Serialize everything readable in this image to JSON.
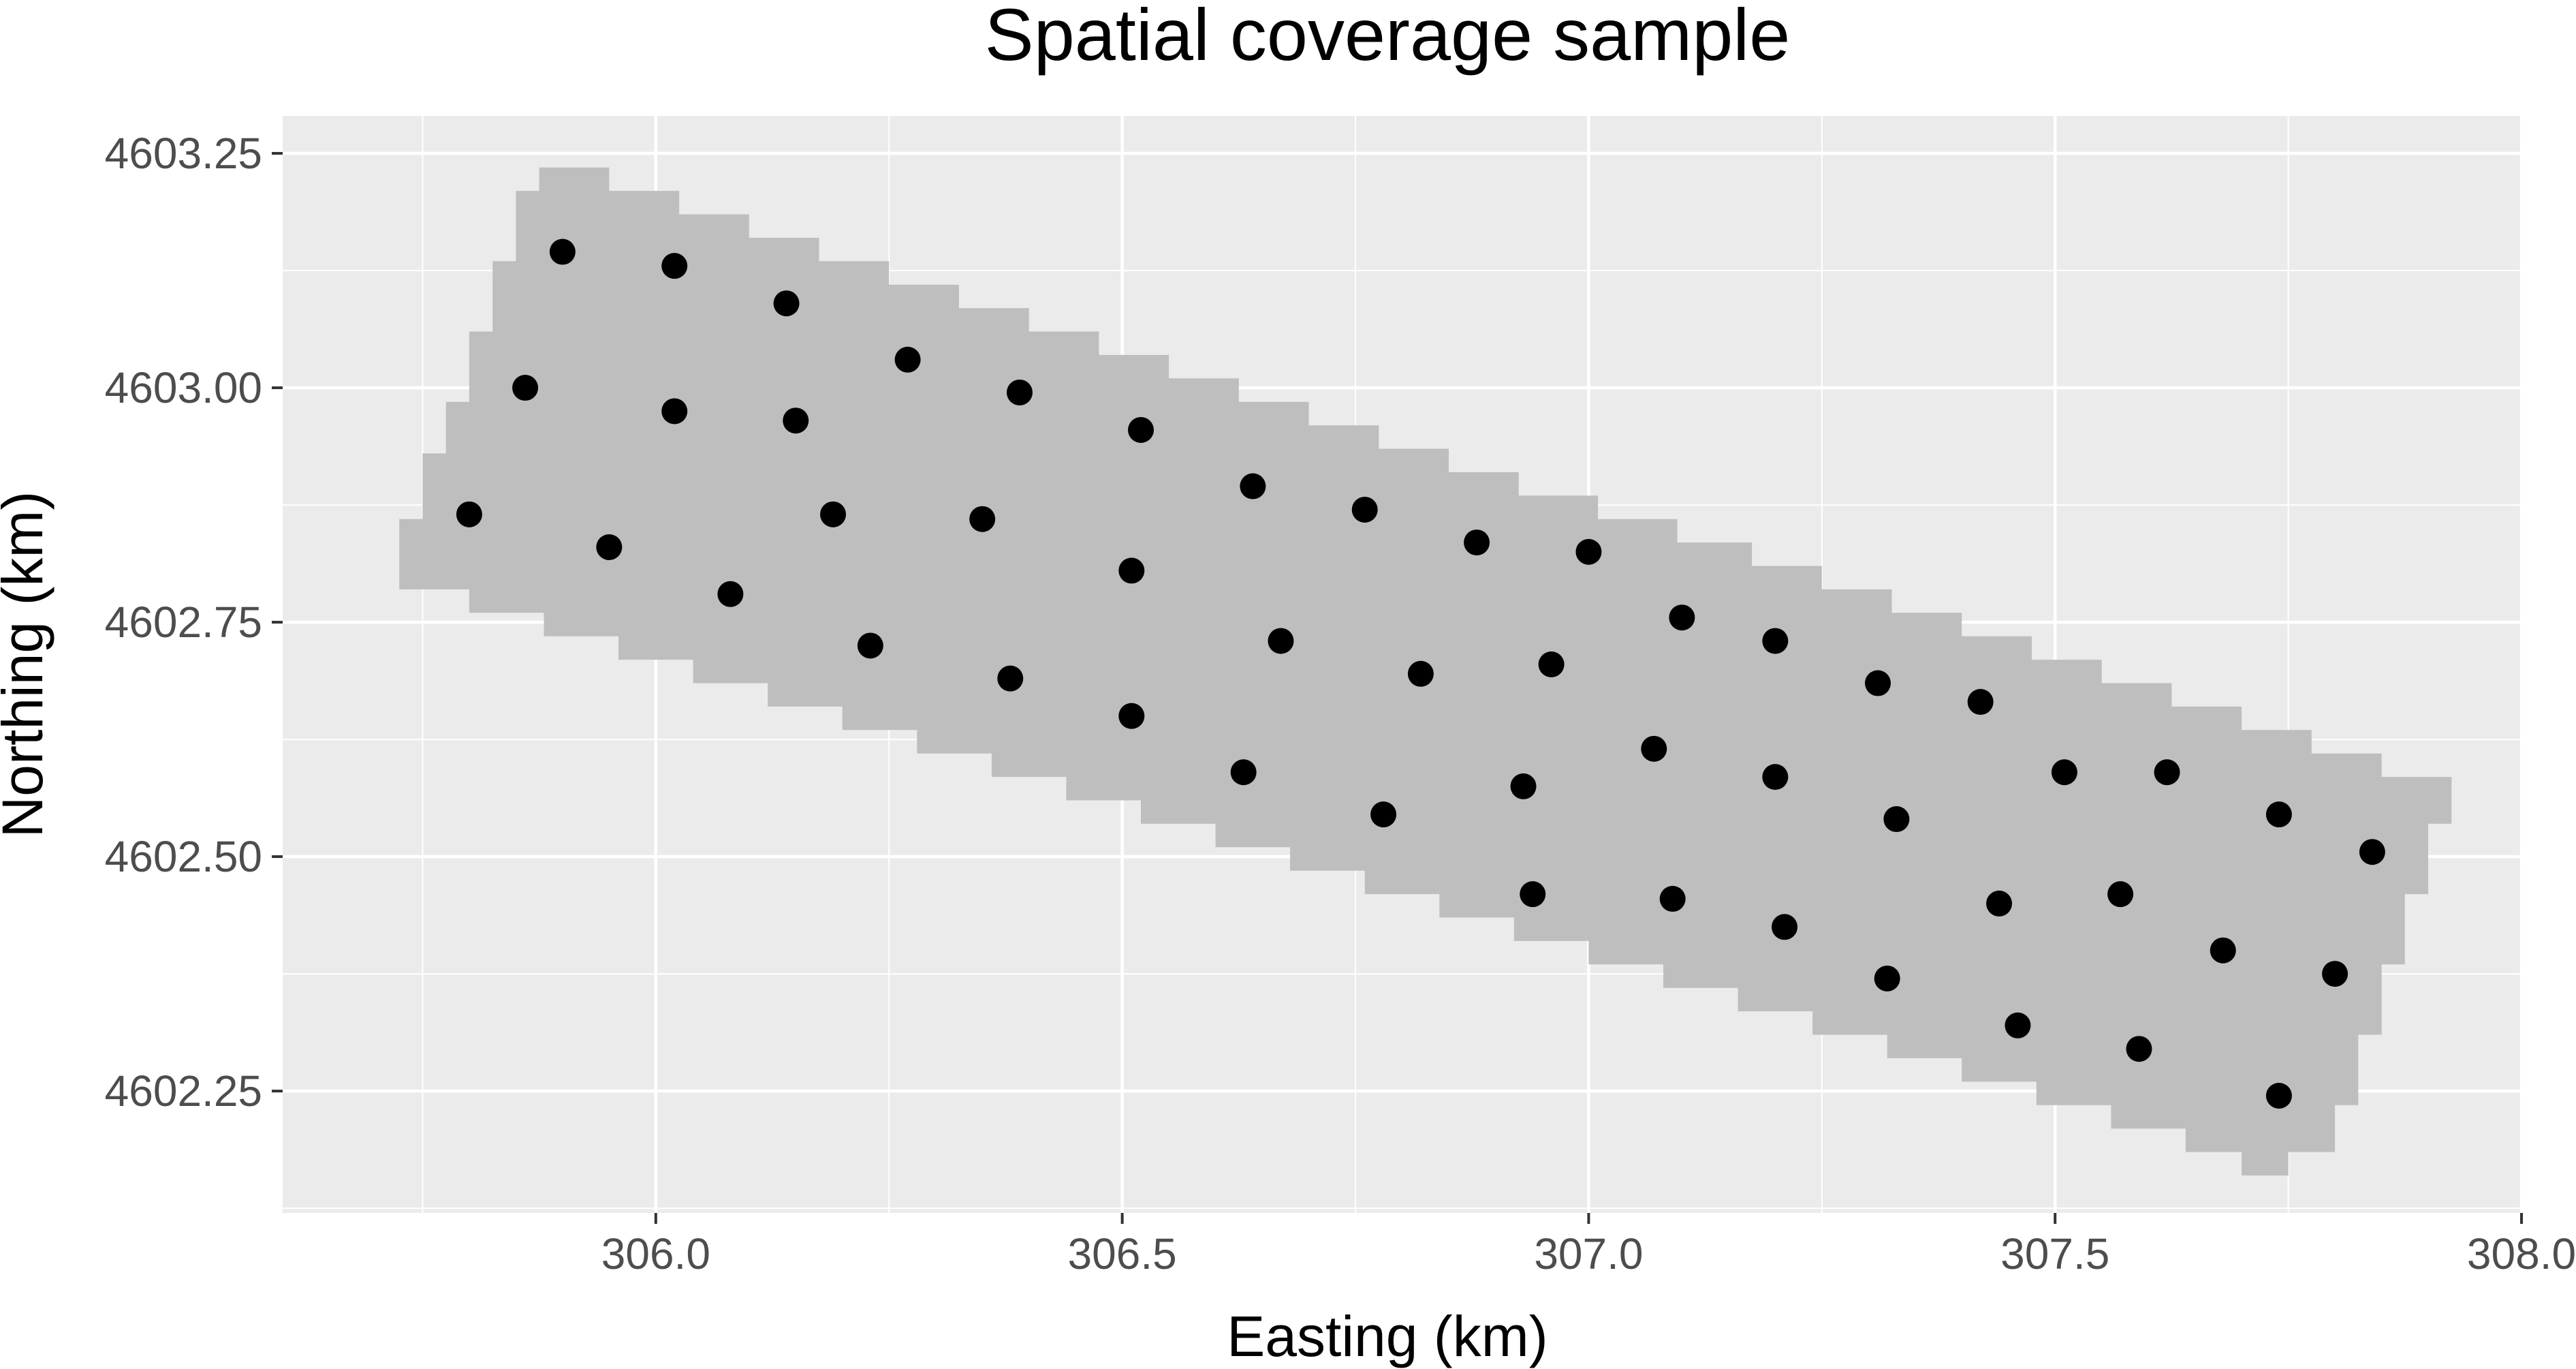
{
  "chart_data": {
    "type": "scatter",
    "title": "Spatial coverage sample",
    "xlabel": "Easting (km)",
    "ylabel": "Northing (km)",
    "xlim": [
      305.6,
      308.0
    ],
    "ylim": [
      4602.12,
      4603.29
    ],
    "xticks": [
      306.0,
      306.5,
      307.0,
      307.5,
      308.0
    ],
    "xtick_labels": [
      "306.0",
      "306.5",
      "307.0",
      "307.5",
      "308.0"
    ],
    "yticks": [
      4602.25,
      4602.5,
      4602.75,
      4603.0,
      4603.25
    ],
    "ytick_labels": [
      "4602.25",
      "4602.50",
      "4602.75",
      "4603.00",
      "4603.25"
    ],
    "grid": true,
    "legend": "none",
    "colors": {
      "panel_background": "#ebebeb",
      "grid": "#ffffff",
      "region_fill": "#bebebe",
      "points": "#000000",
      "tick_text": "#4d4d4d"
    },
    "region": {
      "description_free": true,
      "outline": [
        [
          305.725,
          4602.86
        ],
        [
          305.75,
          4602.86
        ],
        [
          305.75,
          4602.93
        ],
        [
          305.775,
          4602.93
        ],
        [
          305.775,
          4602.985
        ],
        [
          305.8,
          4602.985
        ],
        [
          305.8,
          4603.06
        ],
        [
          305.825,
          4603.06
        ],
        [
          305.825,
          4603.135
        ],
        [
          305.85,
          4603.135
        ],
        [
          305.85,
          4603.21
        ],
        [
          305.875,
          4603.21
        ],
        [
          305.875,
          4603.235
        ],
        [
          305.95,
          4603.235
        ],
        [
          305.95,
          4603.21
        ],
        [
          306.025,
          4603.21
        ],
        [
          306.025,
          4603.185
        ],
        [
          306.1,
          4603.185
        ],
        [
          306.1,
          4603.16
        ],
        [
          306.175,
          4603.16
        ],
        [
          306.175,
          4603.135
        ],
        [
          306.25,
          4603.135
        ],
        [
          306.25,
          4603.11
        ],
        [
          306.325,
          4603.11
        ],
        [
          306.325,
          4603.085
        ],
        [
          306.4,
          4603.085
        ],
        [
          306.4,
          4603.06
        ],
        [
          306.475,
          4603.06
        ],
        [
          306.475,
          4603.035
        ],
        [
          306.55,
          4603.035
        ],
        [
          306.55,
          4603.01
        ],
        [
          306.625,
          4603.01
        ],
        [
          306.625,
          4602.985
        ],
        [
          306.7,
          4602.985
        ],
        [
          306.7,
          4602.96
        ],
        [
          306.775,
          4602.96
        ],
        [
          306.775,
          4602.935
        ],
        [
          306.85,
          4602.935
        ],
        [
          306.85,
          4602.91
        ],
        [
          306.925,
          4602.91
        ],
        [
          306.925,
          4602.885
        ],
        [
          307.01,
          4602.885
        ],
        [
          307.01,
          4602.86
        ],
        [
          307.095,
          4602.86
        ],
        [
          307.095,
          4602.835
        ],
        [
          307.175,
          4602.835
        ],
        [
          307.175,
          4602.81
        ],
        [
          307.25,
          4602.81
        ],
        [
          307.25,
          4602.785
        ],
        [
          307.325,
          4602.785
        ],
        [
          307.325,
          4602.76
        ],
        [
          307.4,
          4602.76
        ],
        [
          307.4,
          4602.735
        ],
        [
          307.475,
          4602.735
        ],
        [
          307.475,
          4602.71
        ],
        [
          307.55,
          4602.71
        ],
        [
          307.55,
          4602.685
        ],
        [
          307.625,
          4602.685
        ],
        [
          307.625,
          4602.66
        ],
        [
          307.7,
          4602.66
        ],
        [
          307.7,
          4602.635
        ],
        [
          307.775,
          4602.635
        ],
        [
          307.775,
          4602.61
        ],
        [
          307.85,
          4602.61
        ],
        [
          307.85,
          4602.585
        ],
        [
          307.925,
          4602.585
        ],
        [
          307.925,
          4602.535
        ],
        [
          307.9,
          4602.535
        ],
        [
          307.9,
          4602.46
        ],
        [
          307.875,
          4602.46
        ],
        [
          307.875,
          4602.385
        ],
        [
          307.85,
          4602.385
        ],
        [
          307.85,
          4602.31
        ],
        [
          307.825,
          4602.31
        ],
        [
          307.825,
          4602.235
        ],
        [
          307.8,
          4602.235
        ],
        [
          307.8,
          4602.185
        ],
        [
          307.75,
          4602.185
        ],
        [
          307.75,
          4602.16
        ],
        [
          307.7,
          4602.16
        ],
        [
          307.7,
          4602.185
        ],
        [
          307.64,
          4602.185
        ],
        [
          307.64,
          4602.21
        ],
        [
          307.56,
          4602.21
        ],
        [
          307.56,
          4602.235
        ],
        [
          307.48,
          4602.235
        ],
        [
          307.48,
          4602.26
        ],
        [
          307.4,
          4602.26
        ],
        [
          307.4,
          4602.285
        ],
        [
          307.32,
          4602.285
        ],
        [
          307.32,
          4602.31
        ],
        [
          307.24,
          4602.31
        ],
        [
          307.24,
          4602.335
        ],
        [
          307.16,
          4602.335
        ],
        [
          307.16,
          4602.36
        ],
        [
          307.08,
          4602.36
        ],
        [
          307.08,
          4602.385
        ],
        [
          307.0,
          4602.385
        ],
        [
          307.0,
          4602.41
        ],
        [
          306.92,
          4602.41
        ],
        [
          306.92,
          4602.435
        ],
        [
          306.84,
          4602.435
        ],
        [
          306.84,
          4602.46
        ],
        [
          306.76,
          4602.46
        ],
        [
          306.76,
          4602.485
        ],
        [
          306.68,
          4602.485
        ],
        [
          306.68,
          4602.51
        ],
        [
          306.6,
          4602.51
        ],
        [
          306.6,
          4602.535
        ],
        [
          306.52,
          4602.535
        ],
        [
          306.52,
          4602.56
        ],
        [
          306.44,
          4602.56
        ],
        [
          306.44,
          4602.585
        ],
        [
          306.36,
          4602.585
        ],
        [
          306.36,
          4602.61
        ],
        [
          306.28,
          4602.61
        ],
        [
          306.28,
          4602.635
        ],
        [
          306.2,
          4602.635
        ],
        [
          306.2,
          4602.66
        ],
        [
          306.12,
          4602.66
        ],
        [
          306.12,
          4602.685
        ],
        [
          306.04,
          4602.685
        ],
        [
          306.04,
          4602.71
        ],
        [
          305.96,
          4602.71
        ],
        [
          305.96,
          4602.735
        ],
        [
          305.88,
          4602.735
        ],
        [
          305.88,
          4602.76
        ],
        [
          305.8,
          4602.76
        ],
        [
          305.8,
          4602.785
        ],
        [
          305.725,
          4602.785
        ]
      ]
    },
    "points": [
      {
        "x": 305.9,
        "y": 4603.145
      },
      {
        "x": 306.02,
        "y": 4603.13
      },
      {
        "x": 306.14,
        "y": 4603.09
      },
      {
        "x": 305.86,
        "y": 4603.0
      },
      {
        "x": 306.02,
        "y": 4602.975
      },
      {
        "x": 306.15,
        "y": 4602.965
      },
      {
        "x": 306.27,
        "y": 4603.03
      },
      {
        "x": 306.39,
        "y": 4602.995
      },
      {
        "x": 306.52,
        "y": 4602.955
      },
      {
        "x": 305.8,
        "y": 4602.865
      },
      {
        "x": 305.95,
        "y": 4602.83
      },
      {
        "x": 306.19,
        "y": 4602.865
      },
      {
        "x": 306.35,
        "y": 4602.86
      },
      {
        "x": 306.51,
        "y": 4602.805
      },
      {
        "x": 306.64,
        "y": 4602.895
      },
      {
        "x": 306.76,
        "y": 4602.87
      },
      {
        "x": 306.88,
        "y": 4602.835
      },
      {
        "x": 307.0,
        "y": 4602.825
      },
      {
        "x": 306.08,
        "y": 4602.78
      },
      {
        "x": 306.23,
        "y": 4602.725
      },
      {
        "x": 306.38,
        "y": 4602.69
      },
      {
        "x": 306.51,
        "y": 4602.65
      },
      {
        "x": 306.67,
        "y": 4602.73
      },
      {
        "x": 306.82,
        "y": 4602.695
      },
      {
        "x": 306.96,
        "y": 4602.705
      },
      {
        "x": 307.1,
        "y": 4602.755
      },
      {
        "x": 307.2,
        "y": 4602.73
      },
      {
        "x": 307.31,
        "y": 4602.685
      },
      {
        "x": 307.42,
        "y": 4602.665
      },
      {
        "x": 306.63,
        "y": 4602.59
      },
      {
        "x": 306.78,
        "y": 4602.545
      },
      {
        "x": 306.93,
        "y": 4602.575
      },
      {
        "x": 307.07,
        "y": 4602.615
      },
      {
        "x": 307.2,
        "y": 4602.585
      },
      {
        "x": 307.33,
        "y": 4602.54
      },
      {
        "x": 307.51,
        "y": 4602.59
      },
      {
        "x": 307.62,
        "y": 4602.59
      },
      {
        "x": 307.74,
        "y": 4602.545
      },
      {
        "x": 307.84,
        "y": 4602.505
      },
      {
        "x": 306.94,
        "y": 4602.46
      },
      {
        "x": 307.09,
        "y": 4602.455
      },
      {
        "x": 307.21,
        "y": 4602.425
      },
      {
        "x": 307.32,
        "y": 4602.37
      },
      {
        "x": 307.44,
        "y": 4602.45
      },
      {
        "x": 307.57,
        "y": 4602.46
      },
      {
        "x": 307.68,
        "y": 4602.4
      },
      {
        "x": 307.8,
        "y": 4602.375
      },
      {
        "x": 307.46,
        "y": 4602.32
      },
      {
        "x": 307.59,
        "y": 4602.295
      },
      {
        "x": 307.74,
        "y": 4602.245
      }
    ]
  }
}
